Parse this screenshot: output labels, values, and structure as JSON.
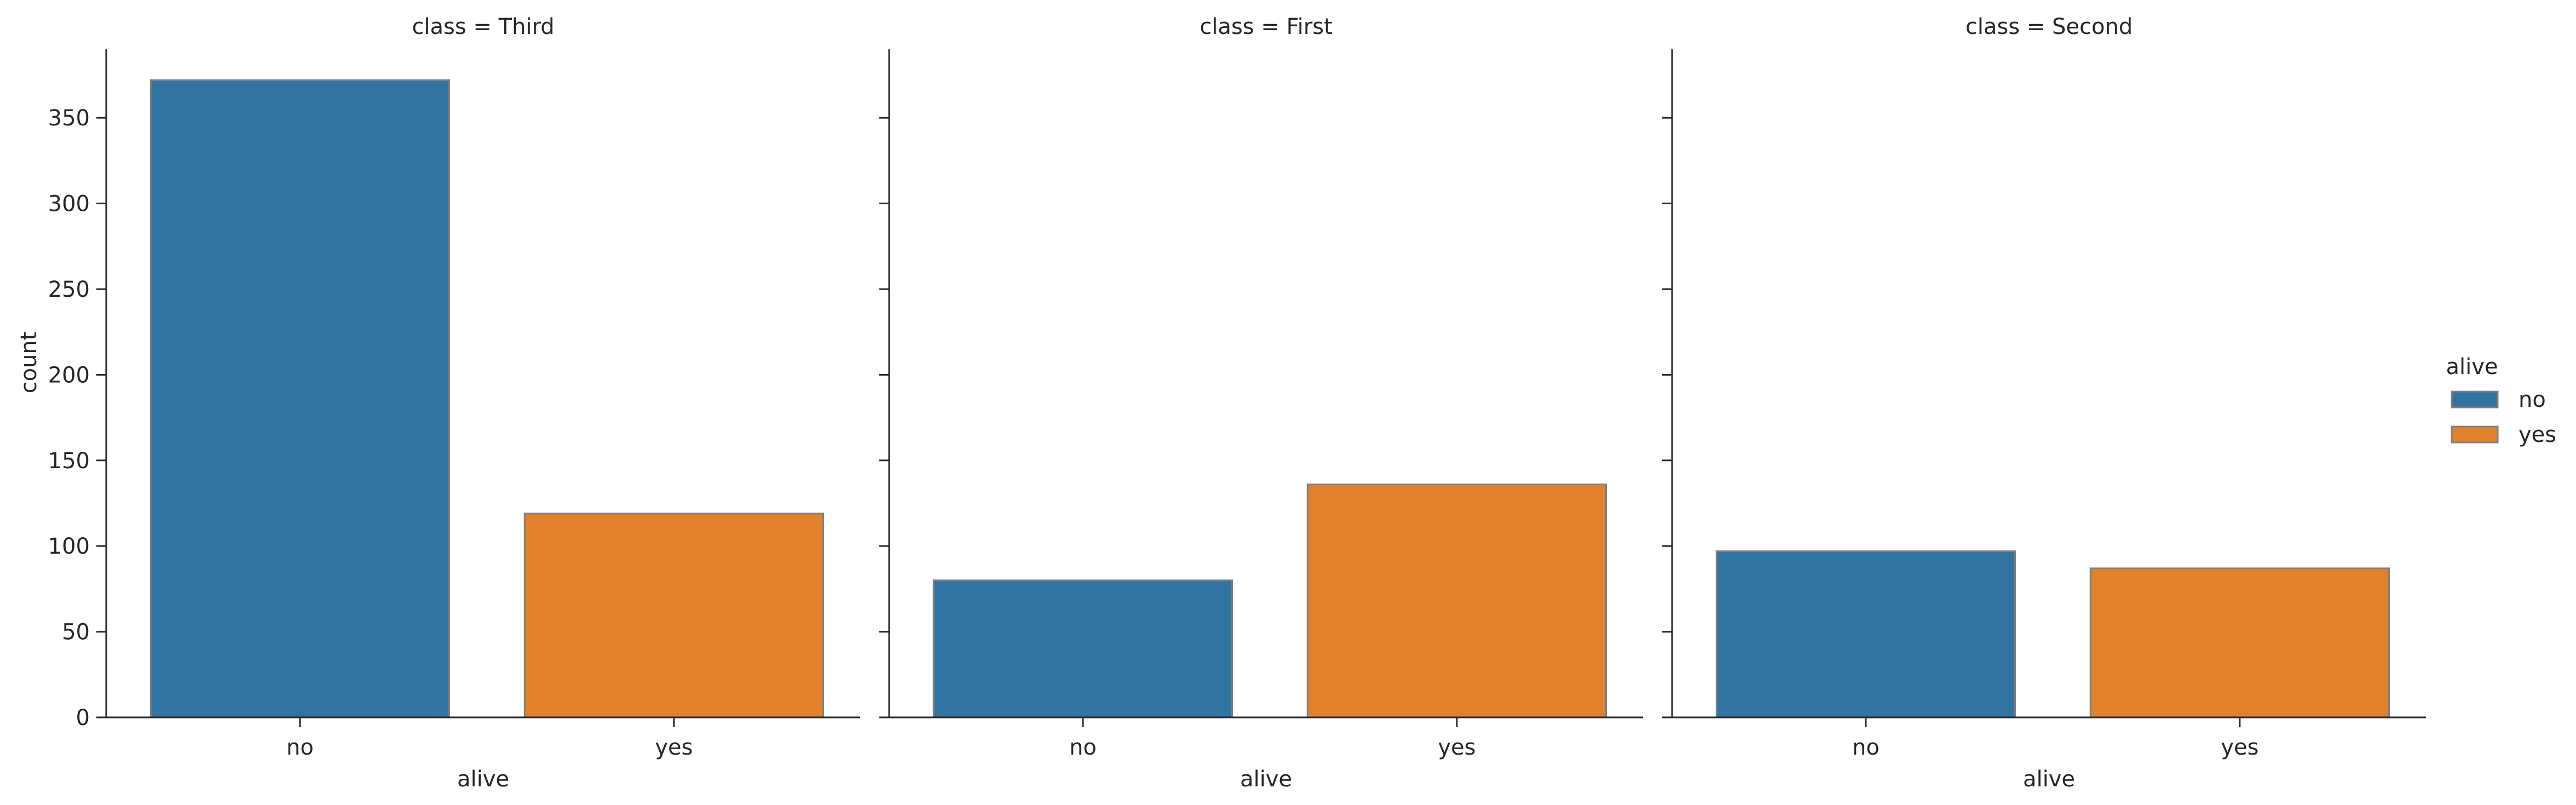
{
  "chart_data": {
    "type": "bar",
    "facet_label_prefix": "class = ",
    "categories": [
      "no",
      "yes"
    ],
    "xlabel": "alive",
    "ylabel": "count",
    "ylim": [
      0,
      390
    ],
    "yticks": [
      0,
      50,
      100,
      150,
      200,
      250,
      300,
      350
    ],
    "grid": false,
    "legend": {
      "title": "alive",
      "placement": "right",
      "entries": [
        {
          "label": "no",
          "color": "#3274a1"
        },
        {
          "label": "yes",
          "color": "#e1812c"
        }
      ]
    },
    "facets": [
      {
        "title": "class = Third",
        "values": [
          372,
          119
        ]
      },
      {
        "title": "class = First",
        "values": [
          80,
          136
        ]
      },
      {
        "title": "class = Second",
        "values": [
          97,
          87
        ]
      }
    ]
  }
}
